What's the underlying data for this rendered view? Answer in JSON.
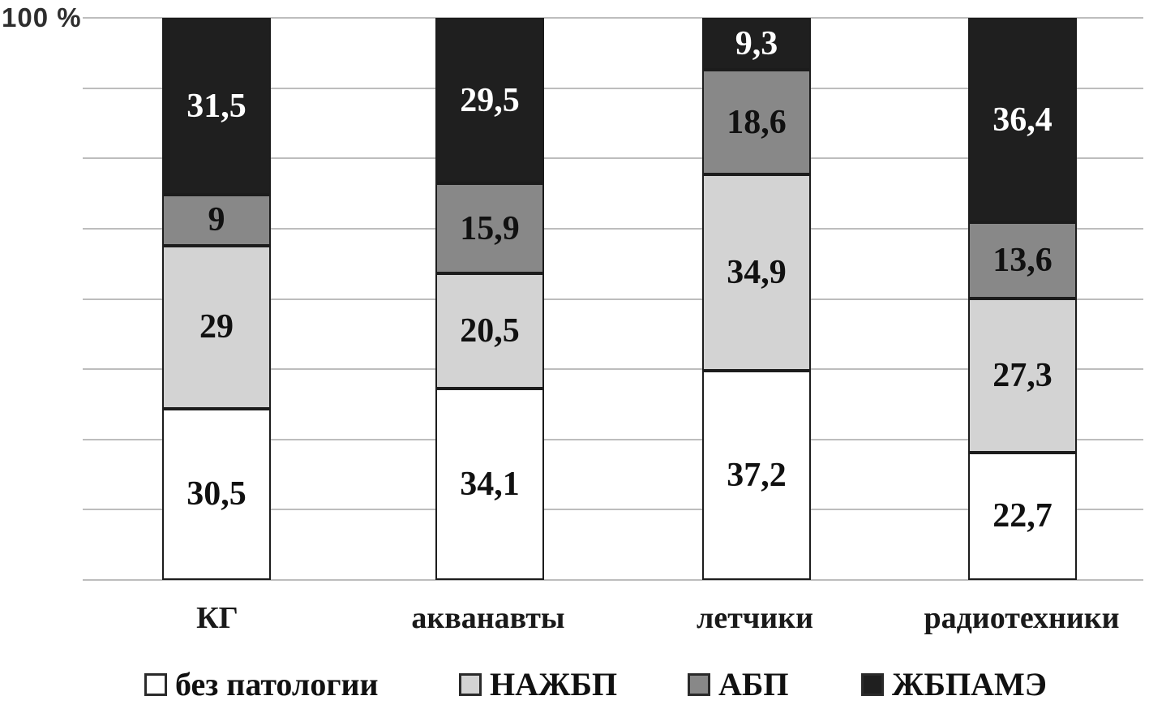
{
  "y_axis": {
    "top_tick": "100 %"
  },
  "chart_data": {
    "type": "bar",
    "stacked": true,
    "title": "",
    "xlabel": "",
    "ylabel": "",
    "unit": "%",
    "ylim": [
      0,
      100
    ],
    "y_axis_top_tick_label": "100 %",
    "y_gridline_step": 12.5,
    "grid": true,
    "legend_position": "bottom",
    "categories": [
      "КГ",
      "акванавты",
      "летчики",
      "радиотехники"
    ],
    "stack_order_bottom_to_top": [
      "без патологии",
      "НАЖБП",
      "АБП",
      "ЖБПАМЭ"
    ],
    "series": [
      {
        "name": "без патологии",
        "color": "#ffffff",
        "label_color": "#111111",
        "values": [
          30.5,
          34.1,
          37.2,
          22.7
        ],
        "display_labels": [
          "30,5",
          "34,1",
          "37,2",
          "22,7"
        ]
      },
      {
        "name": "НАЖБП",
        "color": "#d3d3d3",
        "label_color": "#111111",
        "values": [
          29,
          20.5,
          34.9,
          27.3
        ],
        "display_labels": [
          "29",
          "20,5",
          "34,9",
          "27,3"
        ]
      },
      {
        "name": "АБП",
        "color": "#888888",
        "label_color": "#111111",
        "values": [
          9,
          15.9,
          18.6,
          13.6
        ],
        "display_labels": [
          "9",
          "15,9",
          "18,6",
          "13,6"
        ]
      },
      {
        "name": "ЖБПАМЭ",
        "color": "#1f1f1f",
        "label_color": "#ffffff",
        "values": [
          31.5,
          29.5,
          9.3,
          36.4
        ],
        "display_labels": [
          "31,5",
          "29,5",
          "9,3",
          "36,4"
        ]
      }
    ]
  }
}
